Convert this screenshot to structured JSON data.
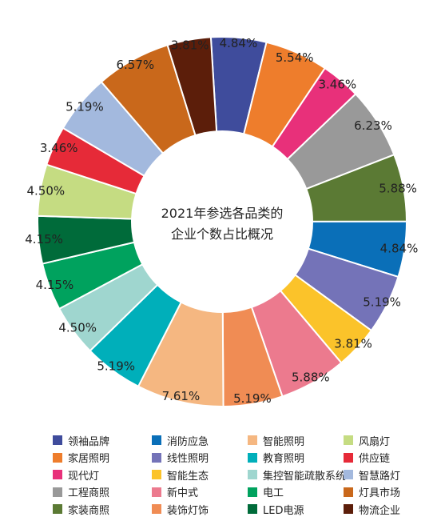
{
  "chart_data": {
    "type": "pie",
    "title": "2021年参选各品类的\n企业个数占比概况",
    "title_lines": [
      "2021年参选各品类的",
      "企业个数占比概况"
    ],
    "grid": false,
    "legend_placement": "bottom",
    "slices": [
      {
        "name": "领袖品牌",
        "value": 4.84,
        "label": "4.84%",
        "color": "#3F4C9C"
      },
      {
        "name": "家居照明",
        "value": 5.54,
        "label": "5.54%",
        "color": "#EE7D2C"
      },
      {
        "name": "现代灯",
        "value": 3.46,
        "label": "3.46%",
        "color": "#E8307A"
      },
      {
        "name": "工程商照",
        "value": 6.23,
        "label": "6.23%",
        "color": "#999999"
      },
      {
        "name": "家装商照",
        "value": 5.88,
        "label": "5.88%",
        "color": "#5B7A34"
      },
      {
        "name": "消防应急",
        "value": 4.84,
        "label": "4.84%",
        "color": "#0A6FB8"
      },
      {
        "name": "线性照明",
        "value": 5.19,
        "label": "5.19%",
        "color": "#7473B8"
      },
      {
        "name": "智能生态",
        "value": 3.81,
        "label": "3.81%",
        "color": "#FBC32A"
      },
      {
        "name": "新中式",
        "value": 5.88,
        "label": "5.88%",
        "color": "#EC7A8E"
      },
      {
        "name": "装饰灯饰",
        "value": 5.19,
        "label": "5.19%",
        "color": "#F08C54"
      },
      {
        "name": "智能照明",
        "value": 7.61,
        "label": "7.61%",
        "color": "#F5B781"
      },
      {
        "name": "教育照明",
        "value": 5.19,
        "label": "5.19%",
        "color": "#00AFBA"
      },
      {
        "name": "集控智能疏散系统",
        "value": 4.5,
        "label": "4.50%",
        "color": "#9FD6CF"
      },
      {
        "name": "电工",
        "value": 4.15,
        "label": "4.15%",
        "color": "#00A25E"
      },
      {
        "name": "LED电源",
        "value": 4.15,
        "label": "4.15%",
        "color": "#006B3A"
      },
      {
        "name": "风扇灯",
        "value": 4.5,
        "label": "4.50%",
        "color": "#C5DC82"
      },
      {
        "name": "供应链",
        "value": 3.46,
        "label": "3.46%",
        "color": "#E62A38"
      },
      {
        "name": "智慧路灯",
        "value": 5.19,
        "label": "5.19%",
        "color": "#A3B9DE"
      },
      {
        "name": "灯具市场",
        "value": 6.57,
        "label": "6.57%",
        "color": "#C9681B"
      },
      {
        "name": "物流企业",
        "value": 3.81,
        "label": "3.81%",
        "color": "#5C1E0A"
      }
    ],
    "legend_order": [
      "领袖品牌",
      "消防应急",
      "智能照明",
      "风扇灯",
      "家居照明",
      "线性照明",
      "教育照明",
      "供应链",
      "现代灯",
      "智能生态",
      "集控智能疏散系统",
      "智慧路灯",
      "工程商照",
      "新中式",
      "电工",
      "灯具市场",
      "家装商照",
      "装饰灯饰",
      "LED电源",
      "物流企业"
    ]
  }
}
